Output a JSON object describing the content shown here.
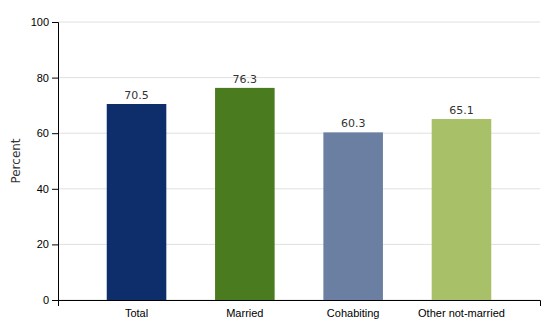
{
  "chart_data": {
    "type": "bar",
    "categories": [
      "Total",
      "Married",
      "Cohabiting",
      "Other not-married"
    ],
    "values": [
      70.5,
      76.3,
      60.3,
      65.1
    ],
    "colors": [
      "#0d2d6b",
      "#4a7c1f",
      "#6b7fa3",
      "#a8c068"
    ],
    "ylabel": "Percent",
    "ylim": [
      0,
      100
    ],
    "yticks": [
      0,
      20,
      40,
      60,
      80,
      100
    ],
    "grid": true,
    "data_labels": true
  }
}
